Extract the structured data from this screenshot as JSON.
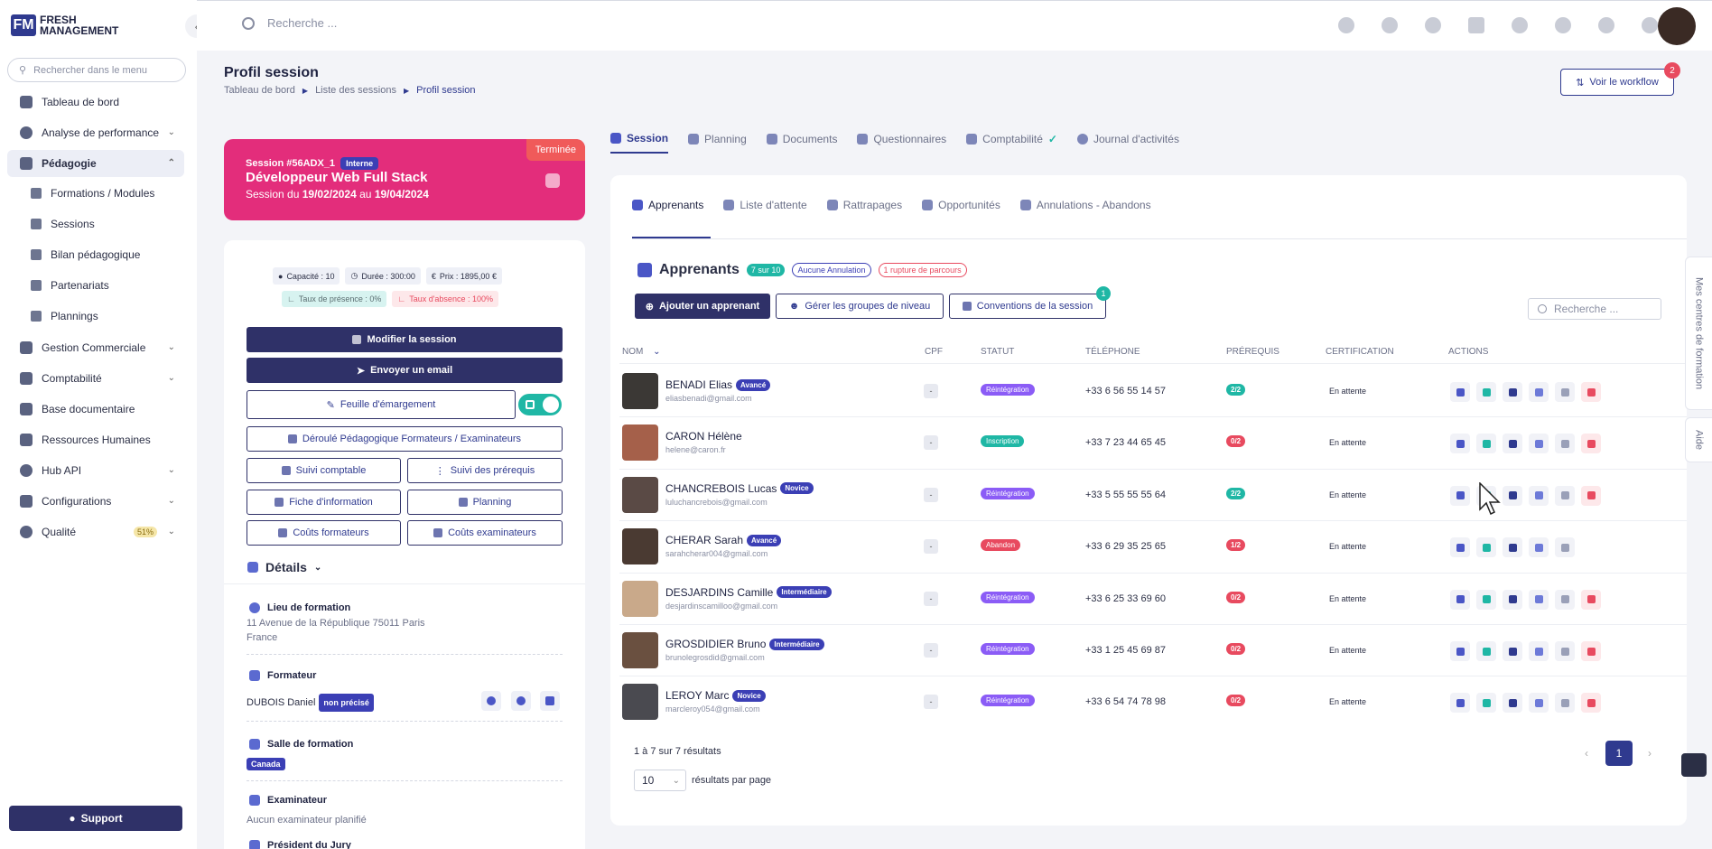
{
  "brand": {
    "line1": "FRESH",
    "line2": "MANAGEMENT"
  },
  "sidebar": {
    "search_placeholder": "Rechercher dans le menu",
    "items": [
      {
        "label": "Tableau de bord"
      },
      {
        "label": "Analyse de performance"
      },
      {
        "label": "Pédagogie"
      },
      {
        "label": "Gestion Commerciale"
      },
      {
        "label": "Comptabilité"
      },
      {
        "label": "Base documentaire"
      },
      {
        "label": "Ressources Humaines"
      },
      {
        "label": "Hub API"
      },
      {
        "label": "Configurations"
      },
      {
        "label": "Qualité",
        "badge": "51%"
      }
    ],
    "sub_items": [
      {
        "label": "Formations / Modules"
      },
      {
        "label": "Sessions"
      },
      {
        "label": "Bilan pédagogique"
      },
      {
        "label": "Partenariats"
      },
      {
        "label": "Plannings"
      }
    ],
    "support": "Support"
  },
  "topbar": {
    "search_placeholder": "Recherche ..."
  },
  "header": {
    "title": "Profil session",
    "breadcrumb": [
      "Tableau de bord",
      "Liste des sessions",
      "Profil session"
    ],
    "workflow_label": "Voir le workflow",
    "workflow_count": "2"
  },
  "session": {
    "status": "Terminée",
    "code": "Session #56ADX_1",
    "type": "Interne",
    "title": "Développeur Web Full Stack",
    "dates_prefix": "Session du",
    "start": "19/02/2024",
    "dates_mid": "au",
    "end": "19/04/2024"
  },
  "stats": {
    "capacite": "Capacité : 10",
    "duree": "Durée : 300:00",
    "prix": "Prix : 1895,00 €",
    "presence": "Taux de présence : 0%",
    "absence": "Taux d'absence : 100%"
  },
  "actions": {
    "modifier": "Modifier la session",
    "email": "Envoyer un email",
    "feuille": "Feuille d'émargement",
    "deroule": "Déroulé Pédagogique Formateurs / Examinateurs",
    "suivi_comptable": "Suivi comptable",
    "suivi_prerequis": "Suivi des prérequis",
    "fiche": "Fiche d'information",
    "planning": "Planning",
    "couts_formateurs": "Coûts formateurs",
    "couts_examinateurs": "Coûts examinateurs"
  },
  "details": {
    "title": "Détails",
    "lieu_label": "Lieu de formation",
    "lieu_line1": "11 Avenue de la République 75011 Paris",
    "lieu_line2": "France",
    "formateur_label": "Formateur",
    "formateur_name": "DUBOIS Daniel",
    "formateur_chip": "non précisé",
    "salle_label": "Salle de formation",
    "salle_chip": "Canada",
    "exam_label": "Examinateur",
    "exam_value": "Aucun examinateur planifié",
    "president_label": "Président du Jury"
  },
  "main_tabs": [
    {
      "label": "Session"
    },
    {
      "label": "Planning"
    },
    {
      "label": "Documents"
    },
    {
      "label": "Questionnaires"
    },
    {
      "label": "Comptabilité"
    },
    {
      "label": "Journal d'activités"
    }
  ],
  "sub_tabs": [
    {
      "label": "Apprenants"
    },
    {
      "label": "Liste d'attente"
    },
    {
      "label": "Rattrapages"
    },
    {
      "label": "Opportunités"
    },
    {
      "label": "Annulations - Abandons"
    }
  ],
  "apprenants": {
    "title": "Apprenants",
    "count_pill": "7 sur 10",
    "annulation_pill": "Aucune Annulation",
    "rupture_pill": "1 rupture de parcours",
    "add_btn": "Ajouter un apprenant",
    "groupes_btn": "Gérer les groupes de niveau",
    "conventions_btn": "Conventions de la session",
    "conventions_badge": "1",
    "search_placeholder": "Recherche ..."
  },
  "table": {
    "headers": [
      "NOM",
      "CPF",
      "STATUT",
      "TÉLÉPHONE",
      "PRÉREQUIS",
      "CERTIFICATION",
      "ACTIONS"
    ],
    "rows": [
      {
        "name": "BENADI Elias",
        "level": "Avancé",
        "email": "eliasbenadi@gmail.com",
        "cpf": "-",
        "statut": "Réintégration",
        "statut_color": "#8b5cf6",
        "tel": "+33 6 56 55 14 57",
        "prereq": "2/2",
        "prereq_color": "#1fb7a5",
        "cert": "En attente",
        "avatar": "#3b3835",
        "delete": true
      },
      {
        "name": "CARON Hélène",
        "level": "",
        "email": "helene@caron.fr",
        "cpf": "-",
        "statut": "Inscription",
        "statut_color": "#1fb7a5",
        "tel": "+33 7 23 44 65 45",
        "prereq": "0/2",
        "prereq_color": "#e84a5f",
        "cert": "En attente",
        "avatar": "#a5604a",
        "delete": true
      },
      {
        "name": "CHANCREBOIS Lucas",
        "level": "Novice",
        "email": "luluchancrebois@gmail.com",
        "cpf": "-",
        "statut": "Réintégration",
        "statut_color": "#8b5cf6",
        "tel": "+33 5 55 55 55 64",
        "prereq": "2/2",
        "prereq_color": "#1fb7a5",
        "cert": "En attente",
        "avatar": "#5a4a45",
        "delete": true
      },
      {
        "name": "CHERAR Sarah",
        "level": "Avancé",
        "email": "sarahcherar004@gmail.com",
        "cpf": "-",
        "statut": "Abandon",
        "statut_color": "#e84a5f",
        "tel": "+33 6 29 35 25 65",
        "prereq": "1/2",
        "prereq_color": "#e84a5f",
        "cert": "En attente",
        "avatar": "#4a3a32",
        "delete": false
      },
      {
        "name": "DESJARDINS Camille",
        "level": "Intermédiaire",
        "email": "desjardinscamilloo@gmail.com",
        "cpf": "-",
        "statut": "Réintégration",
        "statut_color": "#8b5cf6",
        "tel": "+33 6 25 33 69 60",
        "prereq": "0/2",
        "prereq_color": "#e84a5f",
        "cert": "En attente",
        "avatar": "#c9a98a",
        "delete": true
      },
      {
        "name": "GROSDIDIER Bruno",
        "level": "Intermédiaire",
        "email": "brunolegrosdid@gmail.com",
        "cpf": "-",
        "statut": "Réintégration",
        "statut_color": "#8b5cf6",
        "tel": "+33 1 25 45 69 87",
        "prereq": "0/2",
        "prereq_color": "#e84a5f",
        "cert": "En attente",
        "avatar": "#6a5040",
        "delete": true
      },
      {
        "name": "LEROY Marc",
        "level": "Novice",
        "email": "marcleroy054@gmail.com",
        "cpf": "-",
        "statut": "Réintégration",
        "statut_color": "#8b5cf6",
        "tel": "+33 6 54 74 78 98",
        "prereq": "0/2",
        "prereq_color": "#e84a5f",
        "cert": "En attente",
        "avatar": "#4a4a50",
        "delete": true
      }
    ]
  },
  "pagination": {
    "info": "1 à 7 sur 7 résultats",
    "per_page": "10",
    "per_page_label": "résultats par page",
    "current": "1"
  },
  "right_tabs": {
    "centres": "Mes centres de formation",
    "aide": "Aide"
  }
}
